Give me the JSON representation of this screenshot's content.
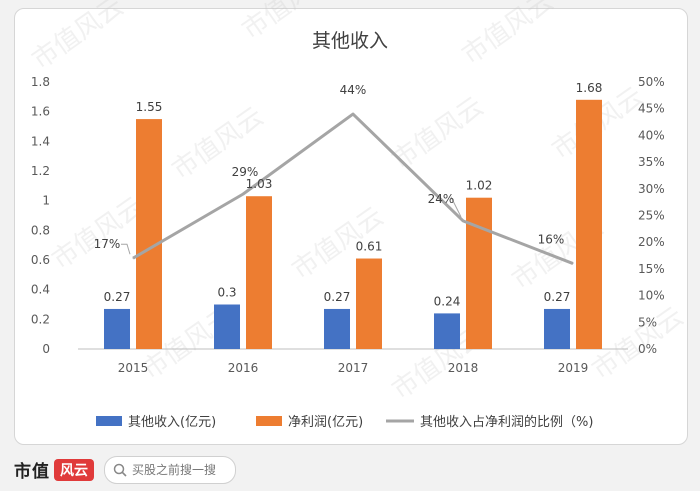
{
  "chart_data": {
    "type": "bar",
    "title": "其他收入",
    "categories": [
      "2015",
      "2016",
      "2017",
      "2018",
      "2019"
    ],
    "series": [
      {
        "name": "其他收入(亿元)",
        "type": "bar",
        "axis": "left",
        "color": "#4472c4",
        "values": [
          0.27,
          0.3,
          0.27,
          0.24,
          0.27
        ]
      },
      {
        "name": "净利润(亿元)",
        "type": "bar",
        "axis": "left",
        "color": "#ed7d31",
        "values": [
          1.55,
          1.03,
          0.61,
          1.02,
          1.68
        ]
      },
      {
        "name": "其他收入占净利润的比例（%)",
        "type": "line",
        "axis": "right",
        "color": "#a5a5a5",
        "values": [
          17,
          29,
          44,
          24,
          16
        ],
        "labels": [
          "17%",
          "29%",
          "44%",
          "24%",
          "16%"
        ]
      }
    ],
    "left_axis": {
      "min": 0,
      "max": 1.8,
      "ticks": [
        "0",
        "0.2",
        "0.4",
        "0.6",
        "0.8",
        "1",
        "1.2",
        "1.4",
        "1.6",
        "1.8"
      ]
    },
    "right_axis": {
      "min": 0,
      "max": 50,
      "ticks": [
        "0%",
        "5%",
        "10%",
        "15%",
        "20%",
        "25%",
        "30%",
        "35%",
        "40%",
        "45%",
        "50%"
      ]
    },
    "grid": false,
    "legend_position": "bottom"
  },
  "watermark": "市值风云",
  "footer": {
    "brand_text": "市值",
    "brand_badge": "风云",
    "search_placeholder": "买股之前搜一搜",
    "search_icon": "search-icon"
  }
}
